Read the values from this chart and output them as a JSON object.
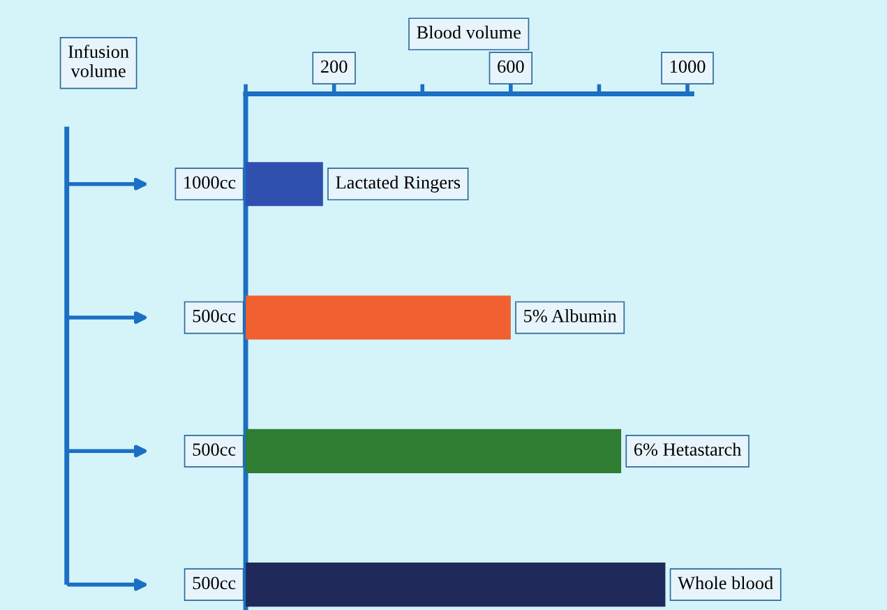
{
  "chart_data": {
    "type": "bar",
    "orientation": "horizontal",
    "xlabel": "Blood volume",
    "categories": [
      "Lactated Ringers",
      "5% Albumin",
      "6% Hetastarch",
      "Whole blood"
    ],
    "values": [
      175,
      600,
      850,
      950
    ],
    "colors": [
      "#3050b0",
      "#f06030",
      "#2e7d32",
      "#1f2a5a"
    ],
    "xlim": [
      0,
      1010
    ],
    "xticks": [
      {
        "value": 0,
        "label": null
      },
      200,
      {
        "value": 400,
        "label": null
      },
      600,
      {
        "value": 800,
        "label": null
      },
      1000
    ],
    "annotations": [
      "Infusion volume",
      "1000cc",
      "500cc",
      "500cc",
      "500cc"
    ],
    "grid": false
  }
}
